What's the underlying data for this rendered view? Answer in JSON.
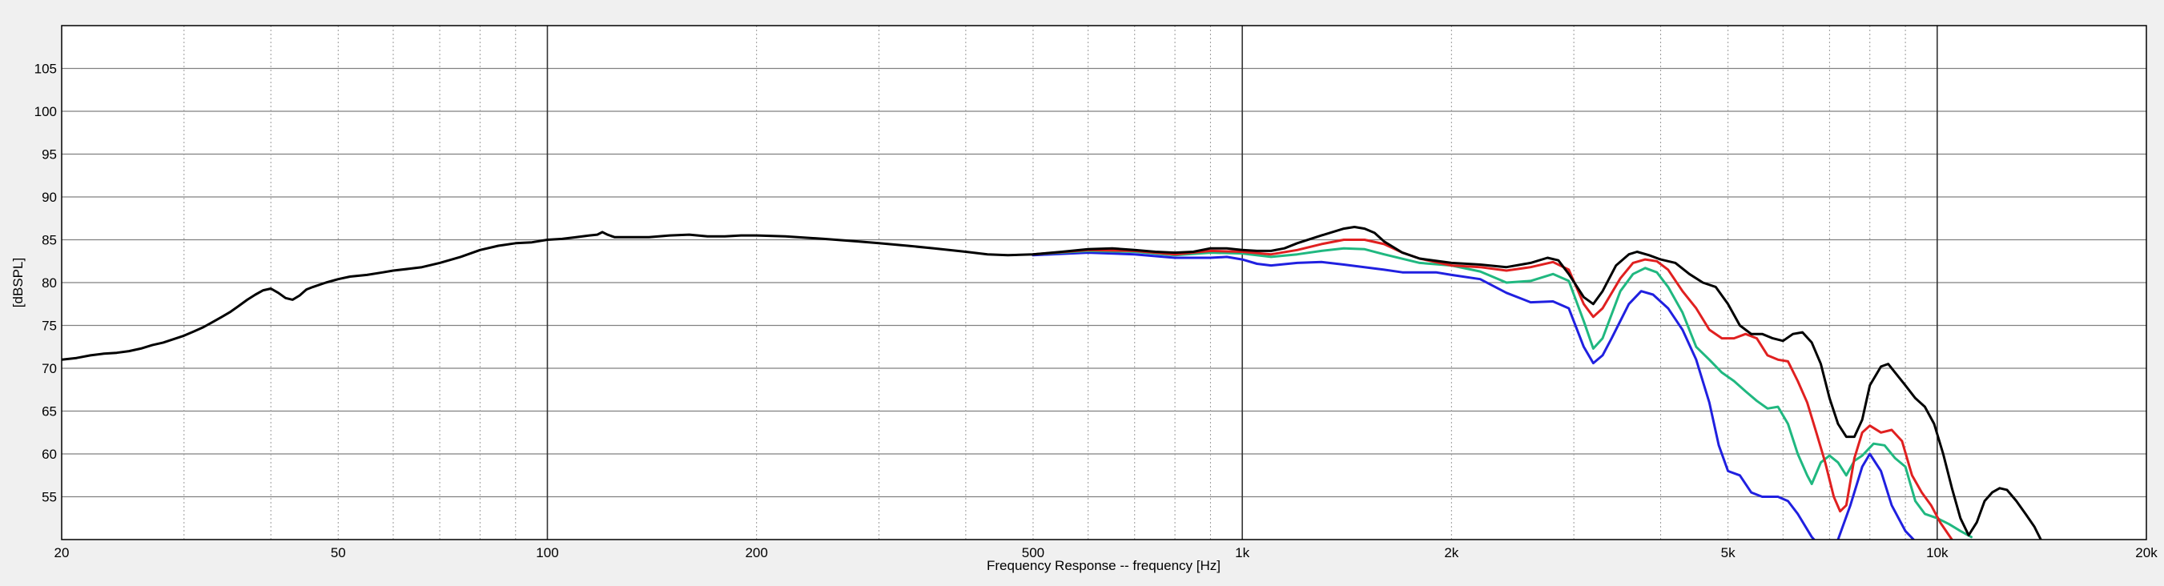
{
  "chart_data": {
    "type": "line",
    "title": "",
    "xlabel": "Frequency Response -- frequency [Hz]",
    "ylabel": "[dBSPL]",
    "x_scale": "log",
    "xlim": [
      20,
      20000
    ],
    "ylim": [
      50,
      110
    ],
    "grid": true,
    "legend": "none",
    "x_ticks": [
      {
        "value": 20,
        "label": "20"
      },
      {
        "value": 50,
        "label": "50"
      },
      {
        "value": 100,
        "label": "100"
      },
      {
        "value": 200,
        "label": "200"
      },
      {
        "value": 500,
        "label": "500"
      },
      {
        "value": 1000,
        "label": "1k"
      },
      {
        "value": 2000,
        "label": "2k"
      },
      {
        "value": 5000,
        "label": "5k"
      },
      {
        "value": 10000,
        "label": "10k"
      },
      {
        "value": 20000,
        "label": "20k"
      }
    ],
    "y_ticks": [
      55,
      60,
      65,
      70,
      75,
      80,
      85,
      90,
      95,
      100,
      105
    ],
    "series": [
      {
        "color": "#2020e0",
        "points": [
          [
            500,
            83.2
          ],
          [
            600,
            83.5
          ],
          [
            700,
            83.3
          ],
          [
            800,
            82.9
          ],
          [
            900,
            82.9
          ],
          [
            950,
            83.0
          ],
          [
            1000,
            82.7
          ],
          [
            1050,
            82.2
          ],
          [
            1100,
            82.0
          ],
          [
            1200,
            82.3
          ],
          [
            1300,
            82.4
          ],
          [
            1400,
            82.1
          ],
          [
            1600,
            81.5
          ],
          [
            1700,
            81.2
          ],
          [
            1900,
            81.2
          ],
          [
            2000,
            80.9
          ],
          [
            2200,
            80.4
          ],
          [
            2400,
            78.8
          ],
          [
            2600,
            77.7
          ],
          [
            2800,
            77.8
          ],
          [
            2950,
            77.0
          ],
          [
            3100,
            72.5
          ],
          [
            3200,
            70.6
          ],
          [
            3300,
            71.5
          ],
          [
            3400,
            73.5
          ],
          [
            3600,
            77.5
          ],
          [
            3750,
            79.0
          ],
          [
            3900,
            78.6
          ],
          [
            4100,
            77.0
          ],
          [
            4300,
            74.5
          ],
          [
            4500,
            71.0
          ],
          [
            4700,
            66.0
          ],
          [
            4850,
            61.0
          ],
          [
            5000,
            58.0
          ],
          [
            5200,
            57.5
          ],
          [
            5400,
            55.5
          ],
          [
            5600,
            55.0
          ],
          [
            5900,
            55.0
          ],
          [
            6100,
            54.5
          ],
          [
            6300,
            53.0
          ],
          [
            6600,
            50.3
          ],
          [
            7000,
            48.0
          ],
          [
            7200,
            50.0
          ],
          [
            7500,
            54.0
          ],
          [
            7800,
            58.5
          ],
          [
            8000,
            60.0
          ],
          [
            8300,
            58.0
          ],
          [
            8600,
            54.0
          ],
          [
            9000,
            51.0
          ],
          [
            9500,
            49.0
          ]
        ]
      },
      {
        "color": "#20b880",
        "points": [
          [
            500,
            83.3
          ],
          [
            600,
            83.7
          ],
          [
            700,
            83.6
          ],
          [
            800,
            83.2
          ],
          [
            900,
            83.5
          ],
          [
            1000,
            83.4
          ],
          [
            1100,
            83.0
          ],
          [
            1200,
            83.3
          ],
          [
            1300,
            83.7
          ],
          [
            1400,
            84.0
          ],
          [
            1500,
            83.9
          ],
          [
            1600,
            83.3
          ],
          [
            1800,
            82.3
          ],
          [
            2000,
            82.0
          ],
          [
            2200,
            81.3
          ],
          [
            2400,
            80.0
          ],
          [
            2600,
            80.2
          ],
          [
            2800,
            81.0
          ],
          [
            2950,
            80.2
          ],
          [
            3100,
            75.5
          ],
          [
            3200,
            72.3
          ],
          [
            3300,
            73.5
          ],
          [
            3500,
            79.0
          ],
          [
            3650,
            81.0
          ],
          [
            3800,
            81.7
          ],
          [
            3950,
            81.2
          ],
          [
            4100,
            79.5
          ],
          [
            4300,
            76.5
          ],
          [
            4500,
            72.5
          ],
          [
            4700,
            71.0
          ],
          [
            4900,
            69.5
          ],
          [
            5100,
            68.5
          ],
          [
            5300,
            67.3
          ],
          [
            5500,
            66.2
          ],
          [
            5700,
            65.3
          ],
          [
            5900,
            65.5
          ],
          [
            6100,
            63.5
          ],
          [
            6300,
            60.0
          ],
          [
            6500,
            57.5
          ],
          [
            6600,
            56.5
          ],
          [
            6800,
            59.0
          ],
          [
            7000,
            59.8
          ],
          [
            7200,
            59.0
          ],
          [
            7400,
            57.5
          ],
          [
            7600,
            59.2
          ],
          [
            7800,
            59.8
          ],
          [
            8100,
            61.2
          ],
          [
            8400,
            61.0
          ],
          [
            8700,
            59.5
          ],
          [
            9000,
            58.5
          ],
          [
            9300,
            54.5
          ],
          [
            9600,
            53.0
          ],
          [
            10000,
            52.5
          ],
          [
            10400,
            51.8
          ],
          [
            10800,
            51.0
          ],
          [
            11200,
            50.3
          ]
        ]
      },
      {
        "color": "#e02020",
        "points": [
          [
            500,
            83.3
          ],
          [
            600,
            83.8
          ],
          [
            700,
            83.7
          ],
          [
            800,
            83.3
          ],
          [
            900,
            83.7
          ],
          [
            1000,
            83.6
          ],
          [
            1100,
            83.3
          ],
          [
            1200,
            83.8
          ],
          [
            1300,
            84.5
          ],
          [
            1400,
            85.0
          ],
          [
            1500,
            85.0
          ],
          [
            1600,
            84.5
          ],
          [
            1700,
            83.5
          ],
          [
            1800,
            82.8
          ],
          [
            2000,
            82.0
          ],
          [
            2200,
            81.8
          ],
          [
            2400,
            81.4
          ],
          [
            2600,
            81.8
          ],
          [
            2800,
            82.4
          ],
          [
            2950,
            81.5
          ],
          [
            3100,
            77.5
          ],
          [
            3200,
            76.0
          ],
          [
            3300,
            77.0
          ],
          [
            3500,
            80.5
          ],
          [
            3650,
            82.3
          ],
          [
            3800,
            82.7
          ],
          [
            3950,
            82.5
          ],
          [
            4100,
            81.5
          ],
          [
            4300,
            79.0
          ],
          [
            4500,
            77.0
          ],
          [
            4700,
            74.5
          ],
          [
            4900,
            73.5
          ],
          [
            5100,
            73.5
          ],
          [
            5300,
            74.0
          ],
          [
            5500,
            73.5
          ],
          [
            5700,
            71.5
          ],
          [
            5900,
            71.0
          ],
          [
            6100,
            70.8
          ],
          [
            6300,
            68.5
          ],
          [
            6500,
            66.0
          ],
          [
            6700,
            62.5
          ],
          [
            6900,
            59.0
          ],
          [
            7100,
            55.0
          ],
          [
            7250,
            53.3
          ],
          [
            7400,
            54.0
          ],
          [
            7600,
            59.5
          ],
          [
            7800,
            62.5
          ],
          [
            8000,
            63.3
          ],
          [
            8300,
            62.5
          ],
          [
            8600,
            62.8
          ],
          [
            8900,
            61.5
          ],
          [
            9200,
            57.5
          ],
          [
            9500,
            55.5
          ],
          [
            9800,
            54.0
          ],
          [
            10100,
            52.0
          ],
          [
            10500,
            50.0
          ],
          [
            10800,
            48.5
          ]
        ]
      },
      {
        "color": "#000000",
        "points": [
          [
            20,
            71.0
          ],
          [
            21,
            71.2
          ],
          [
            22,
            71.5
          ],
          [
            23,
            71.7
          ],
          [
            24,
            71.8
          ],
          [
            25,
            72.0
          ],
          [
            26,
            72.3
          ],
          [
            27,
            72.7
          ],
          [
            28,
            73.0
          ],
          [
            29,
            73.4
          ],
          [
            30,
            73.8
          ],
          [
            31,
            74.3
          ],
          [
            32,
            74.8
          ],
          [
            33,
            75.4
          ],
          [
            34,
            76.0
          ],
          [
            35,
            76.6
          ],
          [
            36,
            77.3
          ],
          [
            37,
            78.0
          ],
          [
            38,
            78.6
          ],
          [
            39,
            79.1
          ],
          [
            40,
            79.3
          ],
          [
            41,
            78.8
          ],
          [
            42,
            78.2
          ],
          [
            43,
            78.0
          ],
          [
            44,
            78.5
          ],
          [
            45,
            79.2
          ],
          [
            46,
            79.5
          ],
          [
            48,
            80.0
          ],
          [
            50,
            80.4
          ],
          [
            52,
            80.7
          ],
          [
            55,
            80.9
          ],
          [
            58,
            81.2
          ],
          [
            60,
            81.4
          ],
          [
            63,
            81.6
          ],
          [
            66,
            81.8
          ],
          [
            70,
            82.3
          ],
          [
            75,
            83.0
          ],
          [
            80,
            83.8
          ],
          [
            85,
            84.3
          ],
          [
            90,
            84.6
          ],
          [
            95,
            84.7
          ],
          [
            100,
            85.0
          ],
          [
            105,
            85.1
          ],
          [
            110,
            85.3
          ],
          [
            115,
            85.5
          ],
          [
            118,
            85.6
          ],
          [
            120,
            85.9
          ],
          [
            122,
            85.6
          ],
          [
            125,
            85.3
          ],
          [
            130,
            85.3
          ],
          [
            140,
            85.3
          ],
          [
            150,
            85.5
          ],
          [
            160,
            85.6
          ],
          [
            170,
            85.4
          ],
          [
            180,
            85.4
          ],
          [
            190,
            85.5
          ],
          [
            200,
            85.5
          ],
          [
            220,
            85.4
          ],
          [
            250,
            85.1
          ],
          [
            280,
            84.8
          ],
          [
            300,
            84.6
          ],
          [
            330,
            84.3
          ],
          [
            360,
            84.0
          ],
          [
            400,
            83.6
          ],
          [
            430,
            83.3
          ],
          [
            460,
            83.2
          ],
          [
            500,
            83.3
          ],
          [
            550,
            83.6
          ],
          [
            600,
            83.9
          ],
          [
            650,
            84.0
          ],
          [
            700,
            83.8
          ],
          [
            750,
            83.6
          ],
          [
            800,
            83.5
          ],
          [
            850,
            83.6
          ],
          [
            900,
            84.0
          ],
          [
            950,
            84.0
          ],
          [
            1000,
            83.8
          ],
          [
            1050,
            83.7
          ],
          [
            1100,
            83.7
          ],
          [
            1150,
            84.0
          ],
          [
            1200,
            84.6
          ],
          [
            1300,
            85.5
          ],
          [
            1400,
            86.3
          ],
          [
            1450,
            86.5
          ],
          [
            1500,
            86.3
          ],
          [
            1550,
            85.8
          ],
          [
            1600,
            84.8
          ],
          [
            1700,
            83.5
          ],
          [
            1800,
            82.8
          ],
          [
            2000,
            82.3
          ],
          [
            2200,
            82.1
          ],
          [
            2400,
            81.8
          ],
          [
            2600,
            82.3
          ],
          [
            2750,
            82.9
          ],
          [
            2850,
            82.6
          ],
          [
            2950,
            81.0
          ],
          [
            3100,
            78.3
          ],
          [
            3200,
            77.5
          ],
          [
            3300,
            79.0
          ],
          [
            3450,
            82.0
          ],
          [
            3600,
            83.3
          ],
          [
            3700,
            83.6
          ],
          [
            3850,
            83.2
          ],
          [
            4000,
            82.7
          ],
          [
            4200,
            82.3
          ],
          [
            4400,
            81.0
          ],
          [
            4600,
            80.0
          ],
          [
            4800,
            79.5
          ],
          [
            5000,
            77.5
          ],
          [
            5200,
            75.0
          ],
          [
            5400,
            74.0
          ],
          [
            5600,
            74.0
          ],
          [
            5800,
            73.5
          ],
          [
            6000,
            73.2
          ],
          [
            6200,
            74.0
          ],
          [
            6400,
            74.2
          ],
          [
            6600,
            73.0
          ],
          [
            6800,
            70.5
          ],
          [
            7000,
            66.5
          ],
          [
            7200,
            63.5
          ],
          [
            7400,
            62.0
          ],
          [
            7600,
            62.0
          ],
          [
            7800,
            64.0
          ],
          [
            8000,
            68.0
          ],
          [
            8300,
            70.2
          ],
          [
            8500,
            70.5
          ],
          [
            8700,
            69.5
          ],
          [
            9000,
            68.0
          ],
          [
            9300,
            66.5
          ],
          [
            9600,
            65.5
          ],
          [
            9900,
            63.5
          ],
          [
            10200,
            60.0
          ],
          [
            10500,
            56.0
          ],
          [
            10800,
            52.5
          ],
          [
            11100,
            50.5
          ],
          [
            11400,
            52.0
          ],
          [
            11700,
            54.5
          ],
          [
            12000,
            55.5
          ],
          [
            12300,
            56.0
          ],
          [
            12600,
            55.8
          ],
          [
            13000,
            54.5
          ],
          [
            13400,
            53.0
          ],
          [
            13800,
            51.5
          ],
          [
            14200,
            49.5
          ]
        ]
      }
    ]
  }
}
